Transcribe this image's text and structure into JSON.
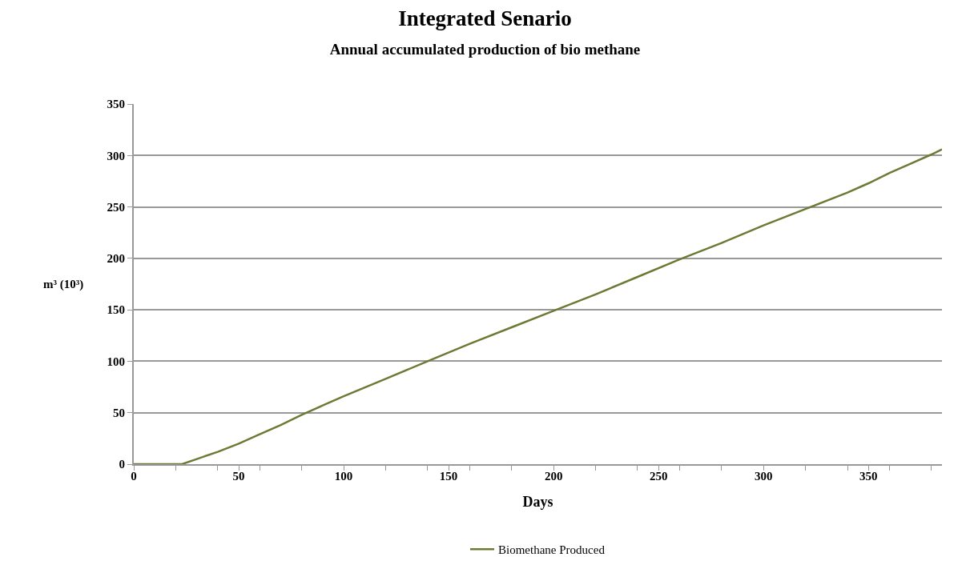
{
  "chart_data": {
    "type": "line",
    "title": "Integrated Senario",
    "subtitle": "Annual accumulated production of bio methane",
    "xlabel": "Days",
    "ylabel": "m³ (10³)",
    "x": [
      0,
      10,
      23,
      30,
      40,
      50,
      60,
      70,
      80,
      90,
      100,
      120,
      140,
      160,
      180,
      200,
      220,
      240,
      260,
      280,
      300,
      320,
      340,
      350,
      360,
      370,
      380,
      385
    ],
    "series": [
      {
        "name": "Biomethane Produced",
        "color": "#6b7b35",
        "values": [
          0,
          0,
          0,
          5,
          12,
          20,
          29,
          38,
          48,
          57,
          66,
          83,
          100,
          117,
          133,
          149,
          165,
          182,
          199,
          215,
          232,
          248,
          264,
          273,
          283,
          292,
          301,
          306
        ]
      }
    ],
    "xlim": [
      0,
      385
    ],
    "xticks": [
      0,
      {
        "value": 20,
        "label": null
      },
      {
        "value": 40,
        "label": null
      },
      50,
      {
        "value": 60,
        "label": null
      },
      {
        "value": 80,
        "label": null
      },
      100,
      {
        "value": 120,
        "label": null
      },
      {
        "value": 140,
        "label": null
      },
      150,
      {
        "value": 160,
        "label": null
      },
      {
        "value": 180,
        "label": null
      },
      200,
      {
        "value": 220,
        "label": null
      },
      {
        "value": 240,
        "label": null
      },
      250,
      {
        "value": 260,
        "label": null
      },
      {
        "value": 280,
        "label": null
      },
      300,
      {
        "value": 320,
        "label": null
      },
      {
        "value": 340,
        "label": null
      },
      350,
      {
        "value": 360,
        "label": null
      },
      {
        "value": 380,
        "label": null
      }
    ],
    "ylim": [
      0,
      350
    ],
    "yticks": [
      0,
      50,
      100,
      150,
      200,
      250,
      300,
      350
    ],
    "grid": "y",
    "legend": "bottom",
    "marker": "none",
    "line_style": "solid"
  }
}
